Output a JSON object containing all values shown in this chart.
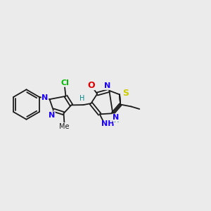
{
  "bg_color": "#ebebeb",
  "bond_color": "#1a1a1a",
  "figsize": [
    3.0,
    3.0
  ],
  "dpi": 100,
  "lw": 1.3,
  "atom_colors": {
    "N": "#1a00ff",
    "S": "#cccc00",
    "O": "#dd0000",
    "Cl": "#00bb00",
    "H": "#008888",
    "C": "#1a1a1a"
  }
}
